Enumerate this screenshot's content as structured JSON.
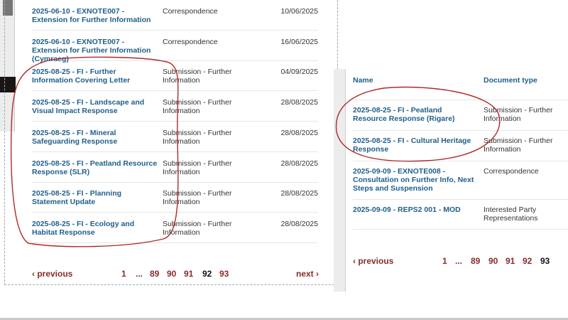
{
  "left_panel": {
    "rows": [
      {
        "name": "2025-06-10 - EXNOTE007 - Extension for Further Information",
        "type": "Correspondence",
        "date": "10/06/2025"
      },
      {
        "name": "2025-06-10 - EXNOTE007 - Extension for Further Information (Cymraeg)",
        "type": "Correspondence",
        "date": "16/06/2025"
      },
      {
        "name": "2025-08-25 - FI - Further Information Covering Letter",
        "type": "Submission - Further Information",
        "date": "04/09/2025"
      },
      {
        "name": "2025-08-25 - FI - Landscape and Visual Impact Response",
        "type": "Submission - Further Information",
        "date": "28/08/2025"
      },
      {
        "name": "2025-08-25 - FI - Mineral Safeguarding Response",
        "type": "Submission - Further Information",
        "date": "28/08/2025"
      },
      {
        "name": "2025-08-25 - FI - Peatland Resource Response (SLR)",
        "type": "Submission - Further Information",
        "date": "28/08/2025"
      },
      {
        "name": "2025-08-25 - FI - Planning Statement Update",
        "type": "Submission - Further Information",
        "date": "28/08/2025"
      },
      {
        "name": "2025-08-25 - FI - Ecology and Habitat Response",
        "type": "Submission - Further Information",
        "date": "28/08/2025"
      }
    ],
    "pagination": {
      "previous": "‹ previous",
      "pages": [
        "1",
        "...",
        "89",
        "90",
        "91",
        "92",
        "93"
      ],
      "current": "92",
      "next": "next ›"
    }
  },
  "right_panel": {
    "headers": {
      "name": "Name",
      "type": "Document type"
    },
    "rows": [
      {
        "name": "2025-08-25 - FI - Peatland Resource Response (Rigare)",
        "type": "Submission - Further Information"
      },
      {
        "name": "2025-08-25 - FI - Cultural Heritage Response",
        "type": "Submission - Further Information"
      },
      {
        "name": "2025-09-09 - EXNOTE008 - Consultation on Further Info, Next Steps and Suspension",
        "type": "Correspondence"
      },
      {
        "name": "2025-09-09 - REPS2 001 - MOD",
        "type": "Interested Party Representations"
      }
    ],
    "pagination": {
      "previous": "‹ previous",
      "pages": [
        "1",
        "...",
        "89",
        "90",
        "91",
        "92",
        "93"
      ],
      "current": "93"
    }
  },
  "colors": {
    "link": "#1f5f8a",
    "pagination": "#8a2a2a",
    "annotation": "#b02a2a"
  }
}
